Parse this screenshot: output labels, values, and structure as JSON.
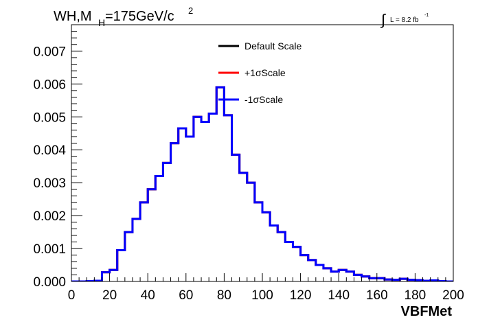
{
  "title": {
    "main": "WH,M",
    "subscript": "H",
    "rest": "=175GeV/c",
    "superscript": "2"
  },
  "lumi": {
    "integral": "∫",
    "label": "L = 8.2 fb",
    "superscript": "-1"
  },
  "chart_data": {
    "type": "line",
    "xlabel": "VBFMet",
    "ylabel": "",
    "xlim": [
      0,
      200
    ],
    "ylim": [
      0,
      0.0078
    ],
    "x_ticks": [
      "0",
      "20",
      "40",
      "60",
      "80",
      "100",
      "120",
      "140",
      "160",
      "180",
      "200"
    ],
    "y_ticks": [
      "0.000",
      "0.001",
      "0.002",
      "0.003",
      "0.004",
      "0.005",
      "0.006",
      "0.007"
    ],
    "bin_edges": [
      0,
      4,
      8,
      12,
      16,
      20,
      24,
      28,
      32,
      36,
      40,
      44,
      48,
      52,
      56,
      60,
      64,
      68,
      72,
      76,
      80,
      84,
      88,
      92,
      96,
      100,
      104,
      108,
      112,
      116,
      120,
      124,
      128,
      132,
      136,
      140,
      144,
      148,
      152,
      156,
      160,
      164,
      168,
      172,
      176,
      180,
      184,
      188,
      192,
      196,
      200
    ],
    "series": [
      {
        "name": "Default Scale",
        "color": "#000000",
        "values": [
          0.0,
          0.0,
          1e-05,
          2e-05,
          0.00028,
          0.00035,
          0.00095,
          0.0015,
          0.0019,
          0.0024,
          0.0028,
          0.0032,
          0.0036,
          0.0042,
          0.00465,
          0.0044,
          0.005,
          0.00485,
          0.0051,
          0.0059,
          0.00505,
          0.00385,
          0.0033,
          0.003,
          0.0024,
          0.0021,
          0.0017,
          0.0015,
          0.0012,
          0.00105,
          0.0008,
          0.00065,
          0.0005,
          0.0004,
          0.0003,
          0.00035,
          0.0003,
          0.0002,
          0.00015,
          0.0001,
          0.0001,
          6e-05,
          5e-05,
          8e-05,
          5e-05,
          4e-05,
          2e-05,
          3e-05,
          1e-05,
          0.0
        ]
      },
      {
        "name": "+1σScale",
        "color": "#ff0000",
        "values": [
          0.0,
          0.0,
          1e-05,
          2e-05,
          0.00028,
          0.00035,
          0.00095,
          0.0015,
          0.0019,
          0.0024,
          0.0028,
          0.0032,
          0.0036,
          0.0042,
          0.00465,
          0.0044,
          0.005,
          0.00485,
          0.0051,
          0.0059,
          0.00505,
          0.00385,
          0.0033,
          0.003,
          0.0024,
          0.0021,
          0.0017,
          0.0015,
          0.0012,
          0.00105,
          0.0008,
          0.00065,
          0.0005,
          0.0004,
          0.0003,
          0.00035,
          0.0003,
          0.0002,
          0.00015,
          0.0001,
          0.0001,
          6e-05,
          5e-05,
          8e-05,
          5e-05,
          4e-05,
          2e-05,
          3e-05,
          1e-05,
          0.0
        ]
      },
      {
        "name": "-1σScale",
        "color": "#0000ff",
        "values": [
          0.0,
          0.0,
          1e-05,
          2e-05,
          0.00028,
          0.00035,
          0.00095,
          0.0015,
          0.0019,
          0.0024,
          0.0028,
          0.0032,
          0.0036,
          0.0042,
          0.00465,
          0.0044,
          0.005,
          0.00485,
          0.0051,
          0.0059,
          0.00505,
          0.00385,
          0.0033,
          0.003,
          0.0024,
          0.0021,
          0.0017,
          0.0015,
          0.0012,
          0.00105,
          0.0008,
          0.00065,
          0.0005,
          0.0004,
          0.0003,
          0.00035,
          0.0003,
          0.0002,
          0.00015,
          0.0001,
          0.0001,
          6e-05,
          5e-05,
          8e-05,
          5e-05,
          4e-05,
          2e-05,
          3e-05,
          1e-05,
          0.0
        ]
      }
    ],
    "legend_position": "top-center",
    "grid": false
  }
}
